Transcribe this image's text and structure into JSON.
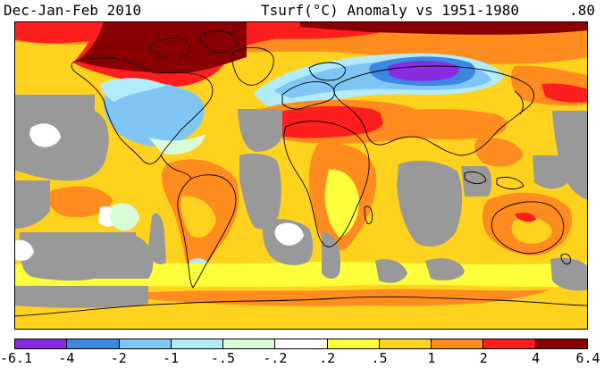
{
  "header": {
    "period": "Dec-Jan-Feb 2010",
    "title": "Tsurf(°C) Anomaly vs 1951-1980",
    "global_mean": ".80"
  },
  "legend": {
    "labels": [
      "-6.1",
      "-4",
      "-2",
      "-1",
      "-.5",
      "-.2",
      ".2",
      ".5",
      "1",
      "2",
      "4",
      "6.4"
    ],
    "colors": [
      "#8a2be2",
      "#3c87e0",
      "#7fc6f5",
      "#b2ecfa",
      "#d9fbd5",
      "#ffffff",
      "#ffff3c",
      "#ffd21e",
      "#ff8c1e",
      "#ff1e1e",
      "#8a0000"
    ]
  },
  "map": {
    "missing_color": "#999999",
    "coastline_color": "#000000"
  }
}
